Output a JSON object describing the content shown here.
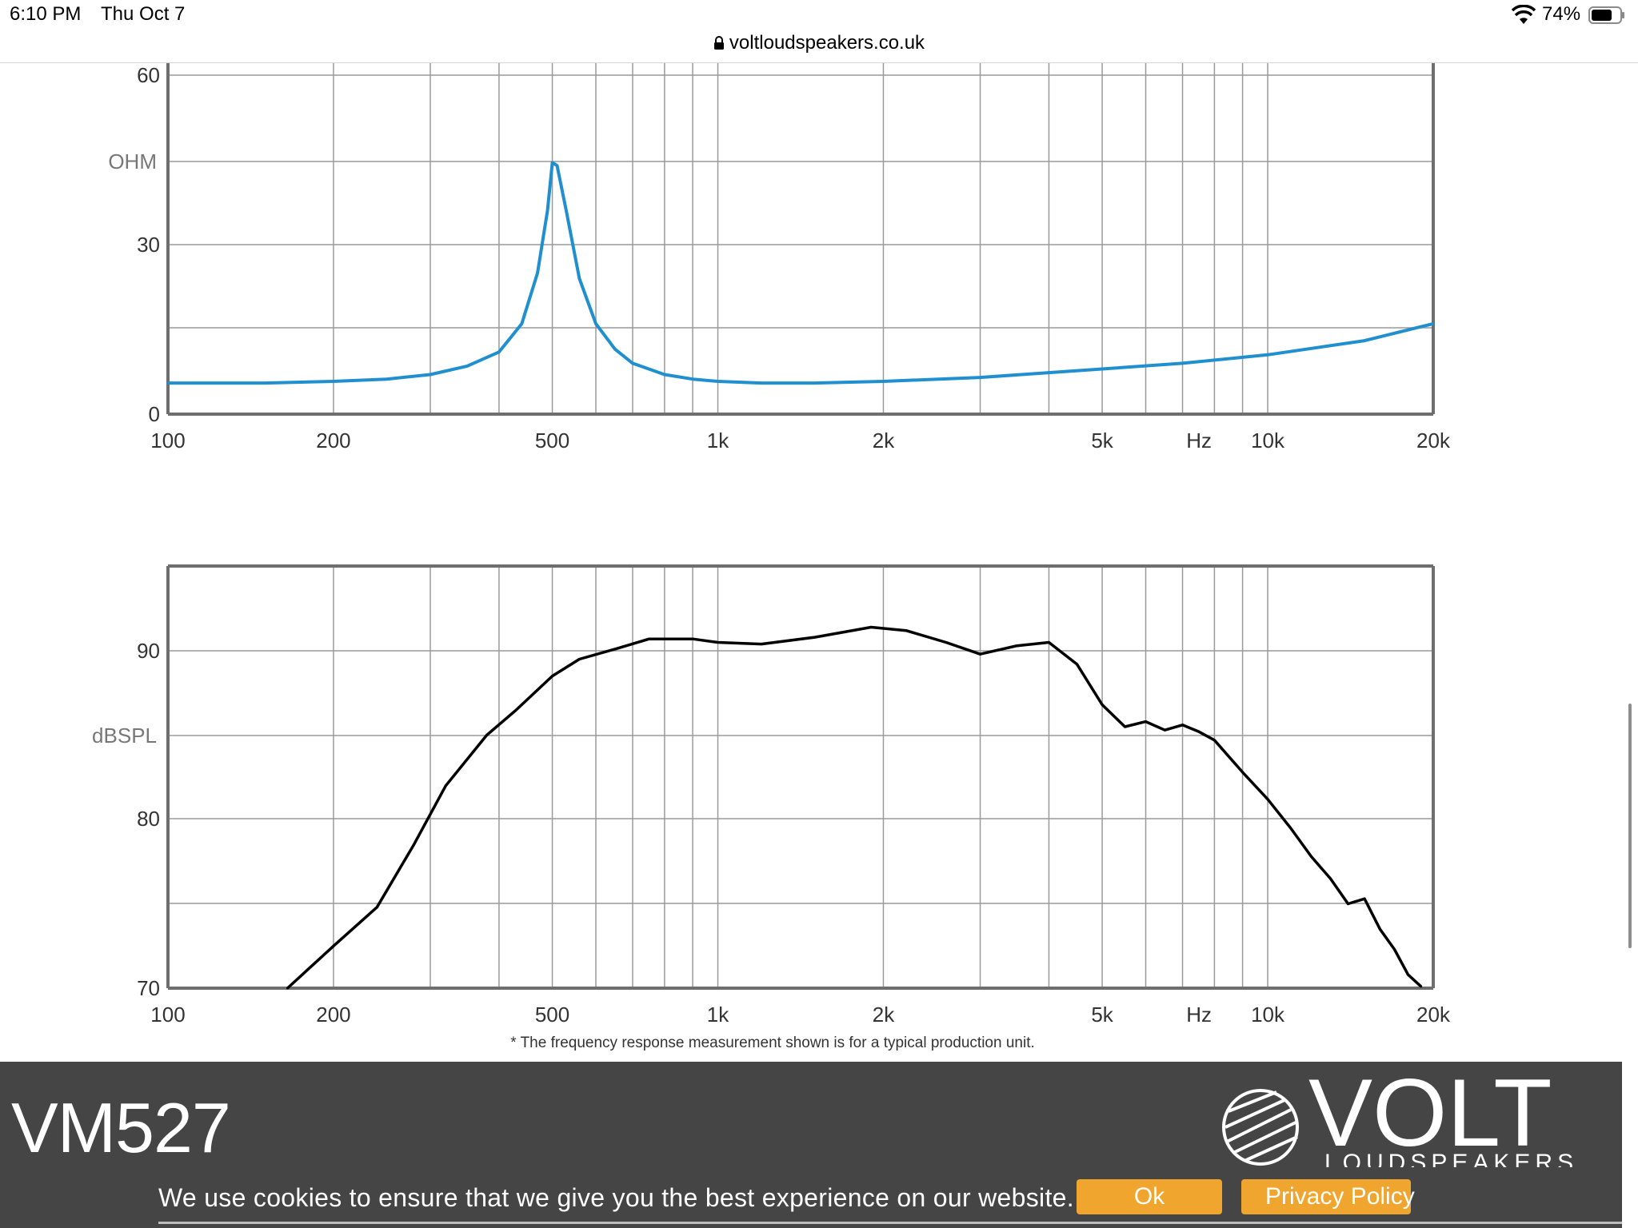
{
  "status_bar": {
    "time": "6:10 PM",
    "date": "Thu Oct 7",
    "battery_percent": "74%",
    "battery_level": 0.74,
    "url": "voltloudspeakers.co.uk"
  },
  "product": {
    "model": "VM527",
    "brand": "VOLT",
    "brand_sub": "LOUDSPEAKERS"
  },
  "cookie_banner": {
    "message": "We use cookies to ensure that we give you the best experience on our website.",
    "ok_label": "Ok",
    "privacy_label": "Privacy Policy"
  },
  "colors": {
    "impedance_line": "#1f8fcf",
    "spl_line": "#000000",
    "button": "#f0a52e",
    "banner": "#454545"
  },
  "chart_data": [
    {
      "type": "line",
      "title": "",
      "xlabel": "Hz",
      "ylabel": "OHM",
      "x_scale": "log",
      "xlim": [
        100,
        20000
      ],
      "ylim": [
        0,
        60
      ],
      "y_ticks": [
        "0",
        "30",
        "60"
      ],
      "x_ticks": [
        "100",
        "200",
        "500",
        "1k",
        "2k",
        "5k",
        "10k",
        "20k"
      ],
      "grid": true,
      "series": [
        {
          "name": "",
          "x": [
            100,
            150,
            200,
            250,
            300,
            350,
            400,
            440,
            470,
            490,
            500,
            510,
            530,
            560,
            600,
            650,
            700,
            800,
            900,
            1000,
            1200,
            1500,
            2000,
            3000,
            5000,
            7000,
            10000,
            15000,
            20000
          ],
          "y": [
            5.5,
            5.5,
            5.8,
            6.2,
            7.0,
            8.5,
            11,
            16,
            25,
            36,
            44.5,
            44,
            36,
            24,
            16,
            11.5,
            9,
            7,
            6.2,
            5.8,
            5.5,
            5.5,
            5.8,
            6.5,
            8,
            9,
            10.5,
            13,
            16
          ]
        }
      ]
    },
    {
      "type": "line",
      "title": "",
      "xlabel": "Hz",
      "ylabel": "dBSPL",
      "x_scale": "log",
      "xlim": [
        100,
        20000
      ],
      "ylim": [
        70,
        95
      ],
      "y_ticks": [
        "70",
        "80",
        "90"
      ],
      "x_ticks": [
        "100",
        "200",
        "500",
        "1k",
        "2k",
        "5k",
        "10k",
        "20k"
      ],
      "grid": true,
      "annotation": "* The frequency response measurement shown is for a typical production unit.",
      "series": [
        {
          "name": "",
          "x": [
            165,
            200,
            240,
            280,
            320,
            380,
            430,
            500,
            560,
            650,
            750,
            900,
            1000,
            1200,
            1500,
            1900,
            2200,
            2600,
            3000,
            3500,
            4000,
            4500,
            5000,
            5500,
            6000,
            6500,
            7000,
            7500,
            8000,
            9000,
            10000,
            11000,
            12000,
            13000,
            14000,
            15000,
            16000,
            17000,
            18000,
            19000
          ],
          "y": [
            70,
            72.5,
            74.8,
            78.5,
            82,
            85,
            86.5,
            88.5,
            89.5,
            90.1,
            90.7,
            90.7,
            90.5,
            90.4,
            90.8,
            91.4,
            91.2,
            90.5,
            89.8,
            90.3,
            90.5,
            89.2,
            86.8,
            85.5,
            85.8,
            85.3,
            85.6,
            85.2,
            84.7,
            82.8,
            81.2,
            79.5,
            77.8,
            76.5,
            75,
            75.3,
            73.5,
            72.3,
            70.8,
            70.1
          ]
        }
      ]
    }
  ]
}
